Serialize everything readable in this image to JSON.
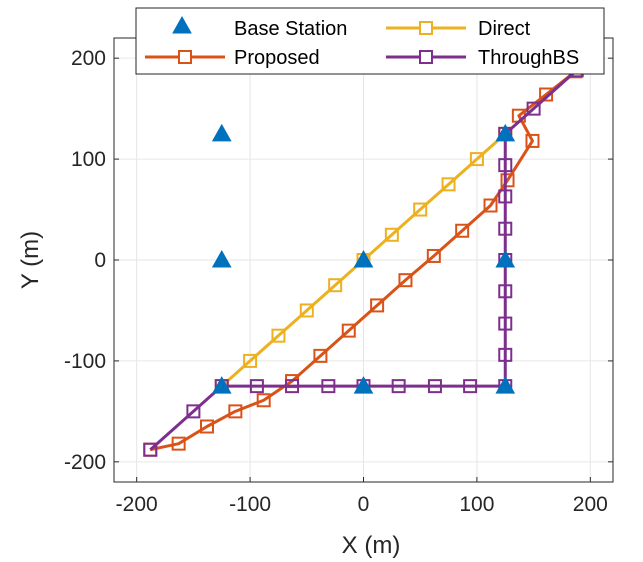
{
  "chart_data": {
    "type": "line",
    "xlabel": "X (m)",
    "ylabel": "Y (m)",
    "xlim": [
      -220,
      220
    ],
    "ylim": [
      -220,
      220
    ],
    "xticks": [
      -200,
      -100,
      0,
      100,
      200
    ],
    "yticks": [
      -200,
      -100,
      0,
      100,
      200
    ],
    "xtick_labels": [
      "-200",
      "-100",
      "0",
      "100",
      "200"
    ],
    "ytick_labels": [
      "-200",
      "-100",
      "0",
      "100",
      "200"
    ],
    "grid": true,
    "legend_position": "top",
    "base_stations": {
      "name": "Base Station",
      "color": "#0072BD",
      "marker": "triangle",
      "points": [
        [
          -125,
          125
        ],
        [
          125,
          125
        ],
        [
          -125,
          0
        ],
        [
          0,
          0
        ],
        [
          125,
          0
        ],
        [
          -125,
          -125
        ],
        [
          0,
          -125
        ],
        [
          125,
          -125
        ]
      ]
    },
    "series": [
      {
        "name": "Proposed",
        "color": "#D95319",
        "marker": "square",
        "points": [
          [
            -188,
            -188
          ],
          [
            -163,
            -182
          ],
          [
            -138,
            -165
          ],
          [
            -113,
            -150
          ],
          [
            -88,
            -139
          ],
          [
            -63,
            -120
          ],
          [
            -38,
            -95
          ],
          [
            -13,
            -70
          ],
          [
            12,
            -45
          ],
          [
            37,
            -20
          ],
          [
            62,
            4
          ],
          [
            87,
            29
          ],
          [
            112,
            54
          ],
          [
            127,
            79
          ],
          [
            149,
            118
          ],
          [
            137,
            143
          ],
          [
            161,
            164
          ],
          [
            187,
            187
          ]
        ]
      },
      {
        "name": "Direct",
        "color": "#EDB120",
        "marker": "square",
        "points": [
          [
            -125,
            -125
          ],
          [
            -100,
            -100
          ],
          [
            -75,
            -75
          ],
          [
            -50,
            -50
          ],
          [
            -25,
            -25
          ],
          [
            0,
            0
          ],
          [
            25,
            25
          ],
          [
            50,
            50
          ],
          [
            75,
            75
          ],
          [
            100,
            100
          ],
          [
            125,
            125
          ]
        ]
      },
      {
        "name": "ThroughBS",
        "color": "#7E2F8E",
        "marker": "square",
        "points": [
          [
            -188,
            -188
          ],
          [
            -150,
            -150
          ],
          [
            -125,
            -125
          ],
          [
            -94,
            -125
          ],
          [
            -63,
            -125
          ],
          [
            -31,
            -125
          ],
          [
            0,
            -125
          ],
          [
            31,
            -125
          ],
          [
            63,
            -125
          ],
          [
            94,
            -125
          ],
          [
            125,
            -125
          ],
          [
            125,
            -94
          ],
          [
            125,
            -63
          ],
          [
            125,
            -31
          ],
          [
            125,
            0
          ],
          [
            125,
            31
          ],
          [
            125,
            63
          ],
          [
            125,
            94
          ],
          [
            125,
            125
          ],
          [
            150,
            150
          ],
          [
            188,
            188
          ]
        ]
      }
    ]
  }
}
